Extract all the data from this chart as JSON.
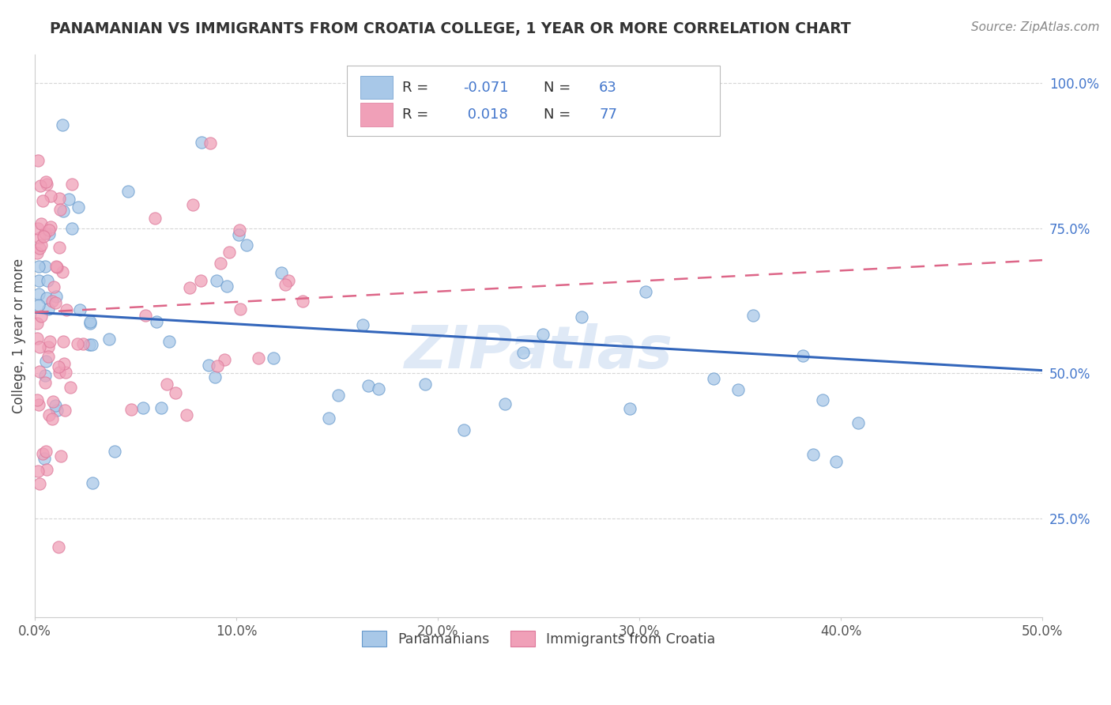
{
  "title": "PANAMANIAN VS IMMIGRANTS FROM CROATIA COLLEGE, 1 YEAR OR MORE CORRELATION CHART",
  "source_text": "Source: ZipAtlas.com",
  "ylabel": "College, 1 year or more",
  "xlim": [
    0.0,
    0.5
  ],
  "ylim": [
    0.08,
    1.05
  ],
  "xticks": [
    0.0,
    0.1,
    0.2,
    0.3,
    0.4,
    0.5
  ],
  "xticklabels": [
    "0.0%",
    "10.0%",
    "20.0%",
    "30.0%",
    "40.0%",
    "50.0%"
  ],
  "yticks": [
    0.25,
    0.5,
    0.75,
    1.0
  ],
  "yticklabels": [
    "25.0%",
    "50.0%",
    "75.0%",
    "100.0%"
  ],
  "blue_color": "#a8c8e8",
  "pink_color": "#f0a0b8",
  "blue_edge_color": "#6699cc",
  "pink_edge_color": "#dd7799",
  "blue_line_color": "#3366bb",
  "pink_line_color": "#dd6688",
  "R_blue": -0.071,
  "N_blue": 63,
  "R_pink": 0.018,
  "N_pink": 77,
  "legend_label_blue": "Panamanians",
  "legend_label_pink": "Immigrants from Croatia",
  "watermark": "ZIPatlas",
  "label_color": "#4477cc",
  "title_color": "#333333",
  "source_color": "#888888",
  "blue_line_y0": 0.605,
  "blue_line_y1": 0.505,
  "pink_line_y0": 0.605,
  "pink_line_y1": 0.695
}
